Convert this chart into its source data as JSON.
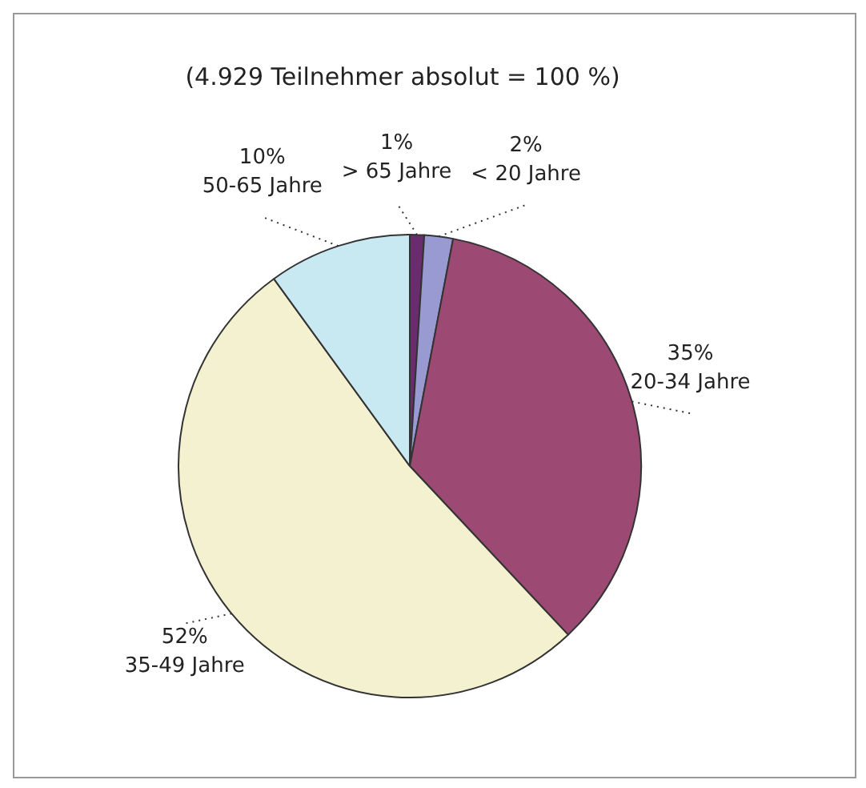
{
  "chart_data": {
    "type": "pie",
    "title": "(4.929 Teilnehmer absolut = 100 %)",
    "categories": [
      "> 65 Jahre",
      "< 20 Jahre",
      "20-34 Jahre",
      "35-49 Jahre",
      "50-65 Jahre"
    ],
    "values": [
      1,
      2,
      35,
      52,
      10
    ],
    "value_labels": [
      "1%",
      "2%",
      "35%",
      "52%",
      "10%"
    ],
    "colors": [
      "#6b2c6e",
      "#9a9ad2",
      "#9c4a74",
      "#f3f1cf",
      "#c9e9f2"
    ],
    "legend": false
  }
}
